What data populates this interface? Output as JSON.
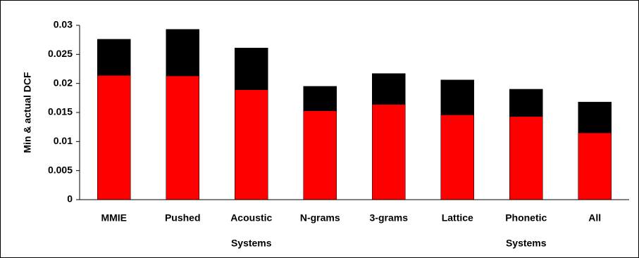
{
  "chart_data": {
    "type": "stacked-bar",
    "y_label": "Min & actual DCF",
    "categories": [
      "MMIE",
      "Pushed",
      "Acoustic",
      "N-grams",
      "3-grams",
      "Lattice",
      "Phonetic",
      "All"
    ],
    "x_sublabels": [
      null,
      null,
      "Systems",
      null,
      null,
      null,
      "Systems",
      null
    ],
    "series": [
      {
        "color": "#ff0000",
        "values": [
          0.0214,
          0.0213,
          0.0189,
          0.0153,
          0.0164,
          0.0146,
          0.0143,
          0.0115
        ]
      },
      {
        "color": "#000000",
        "values": [
          0.0062,
          0.008,
          0.0072,
          0.0042,
          0.0053,
          0.006,
          0.0047,
          0.0053
        ]
      }
    ],
    "ylim": [
      0,
      0.03
    ],
    "yticks": [
      0,
      0.005,
      0.01,
      0.015,
      0.02,
      0.025,
      0.03
    ],
    "grid": false
  }
}
